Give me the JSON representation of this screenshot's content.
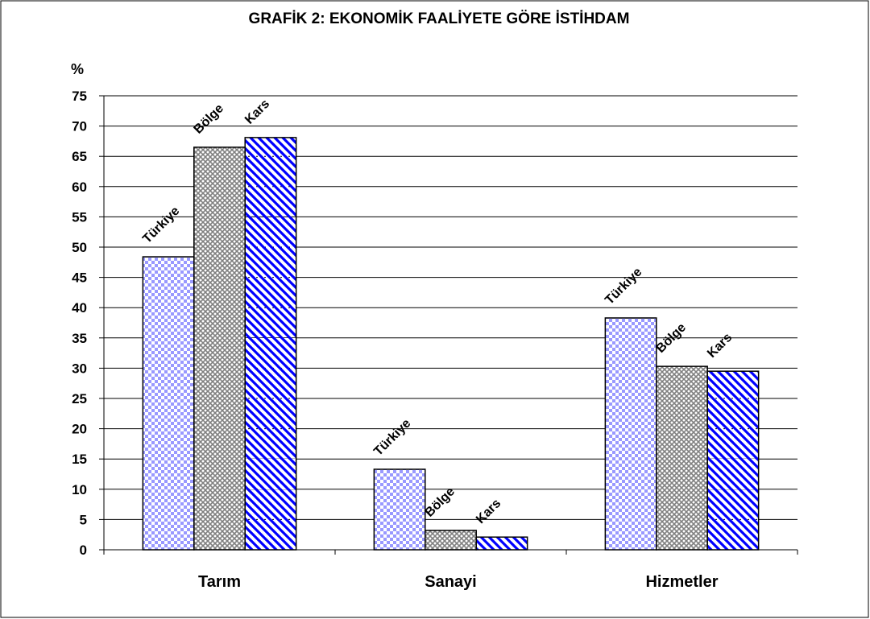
{
  "chart_data": {
    "type": "bar",
    "title": "GRAFİK 2: EKONOMİK FAALİYETE GÖRE İSTİHDAM",
    "y_label": "%",
    "categories": [
      "Tarım",
      "Sanayi",
      "Hizmetler"
    ],
    "series": [
      {
        "name": "Türkiye",
        "color": "#9999ff",
        "pattern": "checker",
        "values": [
          48.4,
          13.3,
          38.3
        ]
      },
      {
        "name": "Bölge",
        "color": "#808080",
        "pattern": "crosshatch",
        "values": [
          66.5,
          3.2,
          30.3
        ]
      },
      {
        "name": "Kars",
        "color": "#0000ff",
        "pattern": "stripes",
        "values": [
          68.1,
          2.1,
          29.5
        ]
      }
    ],
    "ylim": [
      0,
      75
    ],
    "yticks": [
      0,
      5,
      10,
      15,
      20,
      25,
      30,
      35,
      40,
      45,
      50,
      55,
      60,
      65,
      70,
      75
    ],
    "grid": true
  }
}
